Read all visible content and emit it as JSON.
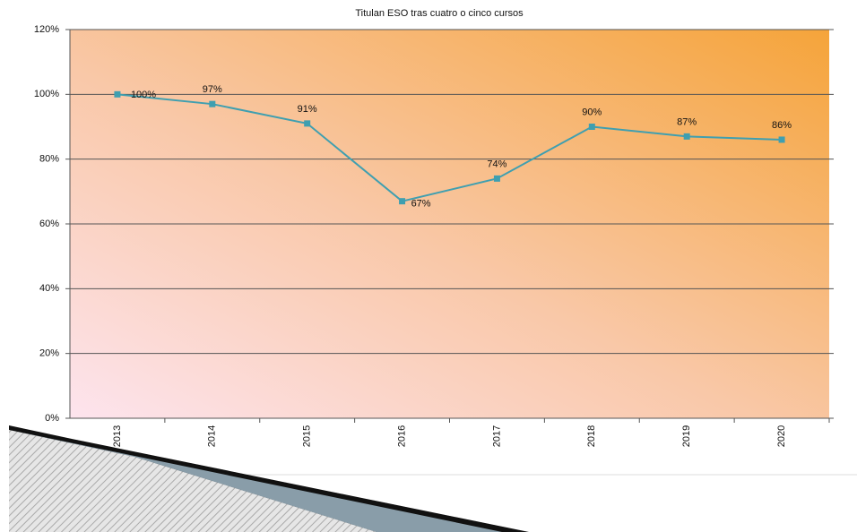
{
  "chart_data": {
    "type": "line",
    "title": "Titulan ESO tras cuatro o cinco cursos",
    "categories": [
      "2013",
      "2014",
      "2015",
      "2016",
      "2017",
      "2018",
      "2019",
      "2020"
    ],
    "values": [
      100,
      97,
      91,
      67,
      74,
      90,
      87,
      86
    ],
    "value_labels": [
      "100%",
      "97%",
      "91%",
      "67%",
      "74%",
      "90%",
      "87%",
      "86%"
    ],
    "color": "#3f9fb0",
    "ylim": [
      0,
      120
    ],
    "yticks": [
      {
        "value": 0,
        "label": "0%"
      },
      {
        "value": 20,
        "label": "20%"
      },
      {
        "value": 40,
        "label": "40%"
      },
      {
        "value": 60,
        "label": "60%"
      },
      {
        "value": 80,
        "label": "80%"
      },
      {
        "value": 100,
        "label": "100%"
      },
      {
        "value": 120,
        "label": "120%"
      }
    ],
    "grid": true
  }
}
